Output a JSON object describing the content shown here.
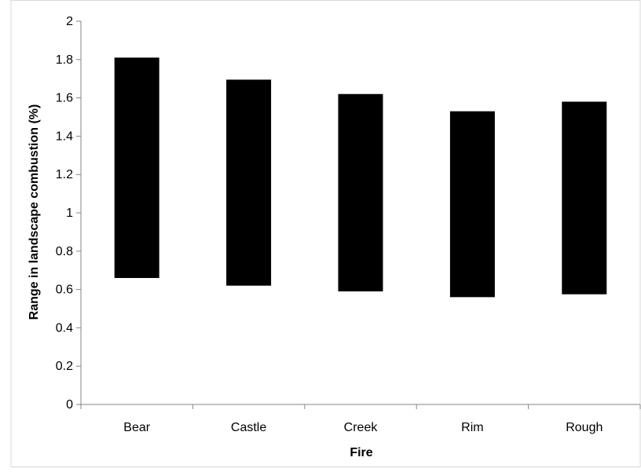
{
  "chart_data": {
    "type": "bar",
    "subtype": "floating-range",
    "title": "",
    "xlabel": "Fire",
    "ylabel": "Range in landscape combustion (%)",
    "categories": [
      "Bear",
      "Castle",
      "Creek",
      "Rim",
      "Rough"
    ],
    "series": [
      {
        "low": [
          0.66,
          0.62,
          0.59,
          0.56,
          0.575
        ],
        "high": [
          1.81,
          1.695,
          1.62,
          1.53,
          1.58
        ],
        "color": "#000000"
      }
    ],
    "ylim": [
      0,
      2
    ],
    "yticks": [
      0,
      0.2,
      0.4,
      0.6,
      0.8,
      1,
      1.2,
      1.4,
      1.6,
      1.8,
      2
    ],
    "ytick_labels": [
      "0",
      "0.2",
      "0.4",
      "0.6",
      "0.8",
      "1",
      "1.2",
      "1.4",
      "1.6",
      "1.8",
      "2"
    ],
    "grid": false,
    "legend": "none"
  }
}
